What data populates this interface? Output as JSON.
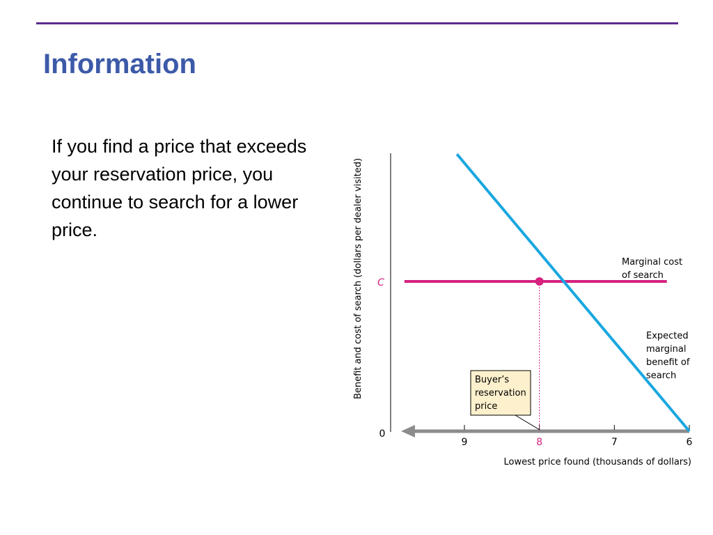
{
  "slide": {
    "title": "Information",
    "body": "If you find a price that exceeds your reservation price, you continue to search for a lower price."
  },
  "chart_data": {
    "type": "line",
    "ylabel": "Benefit and cost of search (dollars per dealer visited)",
    "xlabel": "Lowest price found (thousands of dollars)",
    "x_direction": "reversed",
    "x_ticks": [
      9,
      8,
      7,
      6
    ],
    "x_tick_labels": [
      "9",
      "8",
      "7",
      "6"
    ],
    "highlight_x": 8,
    "origin_label": "0",
    "c_label": "C",
    "series": [
      {
        "name": "Marginal cost of search",
        "label_lines": [
          "Marginal cost",
          "of search"
        ],
        "color": "#d6217f",
        "points": [
          [
            9.8,
            1
          ],
          [
            6.3,
            1
          ]
        ]
      },
      {
        "name": "Expected marginal benefit of search",
        "label_lines": [
          "Expected",
          "marginal",
          "benefit of",
          "search"
        ],
        "color": "#1aa7e0",
        "points": [
          [
            9.1,
            1.85
          ],
          [
            6.0,
            0
          ]
        ]
      }
    ],
    "intersection": [
      8,
      1
    ],
    "callout_lines": [
      "Buyer’s",
      "reservation",
      "price"
    ],
    "colors": {
      "highlight": "#d6217f",
      "axis_arrow": "#8c8c8c",
      "callout_fill": "#fdf0cc"
    }
  }
}
